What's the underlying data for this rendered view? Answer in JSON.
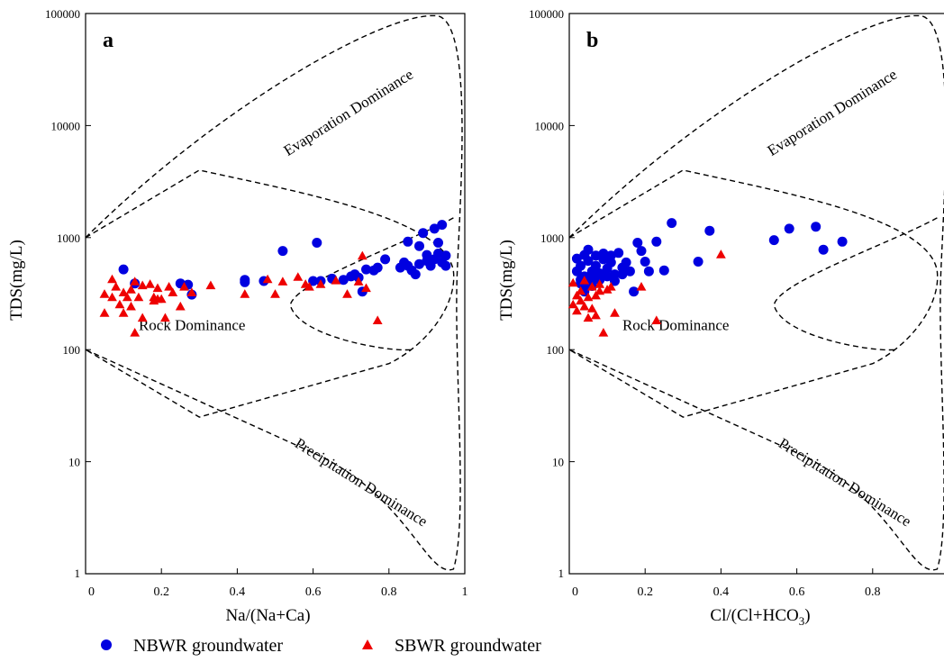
{
  "colors": {
    "nbwr": "#0000e0",
    "sbwr": "#ee0000",
    "axis": "#000000",
    "envelope": "#000000"
  },
  "legend": {
    "position": "bottom",
    "items": [
      {
        "label": "NBWR groundwater",
        "marker": "circle",
        "color": "#0000e0"
      },
      {
        "label": "SBWR groundwater",
        "marker": "triangle",
        "color": "#ee0000"
      }
    ]
  },
  "chart_data": [
    {
      "type": "scatter",
      "panel_label": "a",
      "title": "",
      "xlabel": "Na/(Na+Ca)",
      "ylabel": "TDS(mg/L)",
      "xlim": [
        0,
        1
      ],
      "ylim": [
        1,
        100000
      ],
      "y_scale": "log",
      "grid": false,
      "x_ticks": [
        "0",
        "0.2",
        "0.4",
        "0.6",
        "0.8",
        "1"
      ],
      "y_ticks": [
        "1",
        "10",
        "100",
        "1000",
        "10000",
        "100000"
      ],
      "zone_labels": [
        "Evaporation Dominance",
        "Rock Dominance",
        "Precipitation Dominance"
      ],
      "series": [
        {
          "name": "NBWR groundwater",
          "marker": "circle",
          "points": [
            [
              0.1,
              520
            ],
            [
              0.13,
              390
            ],
            [
              0.25,
              390
            ],
            [
              0.27,
              380
            ],
            [
              0.28,
              310
            ],
            [
              0.42,
              420
            ],
            [
              0.42,
              400
            ],
            [
              0.47,
              410
            ],
            [
              0.52,
              760
            ],
            [
              0.6,
              410
            ],
            [
              0.61,
              900
            ],
            [
              0.62,
              410
            ],
            [
              0.65,
              430
            ],
            [
              0.68,
              420
            ],
            [
              0.7,
              450
            ],
            [
              0.71,
              470
            ],
            [
              0.72,
              440
            ],
            [
              0.73,
              330
            ],
            [
              0.74,
              520
            ],
            [
              0.76,
              510
            ],
            [
              0.77,
              540
            ],
            [
              0.79,
              640
            ],
            [
              0.83,
              540
            ],
            [
              0.84,
              600
            ],
            [
              0.85,
              920
            ],
            [
              0.85,
              560
            ],
            [
              0.86,
              510
            ],
            [
              0.87,
              470
            ],
            [
              0.88,
              840
            ],
            [
              0.88,
              580
            ],
            [
              0.89,
              1100
            ],
            [
              0.9,
              700
            ],
            [
              0.9,
              620
            ],
            [
              0.91,
              560
            ],
            [
              0.92,
              640
            ],
            [
              0.92,
              1200
            ],
            [
              0.93,
              720
            ],
            [
              0.93,
              900
            ],
            [
              0.94,
              1300
            ],
            [
              0.94,
              600
            ],
            [
              0.95,
              690
            ],
            [
              0.95,
              560
            ]
          ]
        },
        {
          "name": "SBWR groundwater",
          "marker": "triangle",
          "points": [
            [
              0.05,
              310
            ],
            [
              0.05,
              210
            ],
            [
              0.07,
              420
            ],
            [
              0.07,
              290
            ],
            [
              0.08,
              360
            ],
            [
              0.09,
              250
            ],
            [
              0.1,
              320
            ],
            [
              0.1,
              210
            ],
            [
              0.11,
              290
            ],
            [
              0.12,
              340
            ],
            [
              0.12,
              240
            ],
            [
              0.13,
              140
            ],
            [
              0.13,
              400
            ],
            [
              0.14,
              290
            ],
            [
              0.15,
              370
            ],
            [
              0.15,
              190
            ],
            [
              0.17,
              380
            ],
            [
              0.18,
              290
            ],
            [
              0.18,
              270
            ],
            [
              0.19,
              350
            ],
            [
              0.19,
              280
            ],
            [
              0.2,
              280
            ],
            [
              0.21,
              190
            ],
            [
              0.22,
              360
            ],
            [
              0.23,
              320
            ],
            [
              0.25,
              240
            ],
            [
              0.26,
              360
            ],
            [
              0.28,
              320
            ],
            [
              0.33,
              370
            ],
            [
              0.42,
              310
            ],
            [
              0.48,
              420
            ],
            [
              0.5,
              310
            ],
            [
              0.52,
              400
            ],
            [
              0.56,
              440
            ],
            [
              0.58,
              380
            ],
            [
              0.59,
              360
            ],
            [
              0.62,
              380
            ],
            [
              0.66,
              410
            ],
            [
              0.69,
              310
            ],
            [
              0.72,
              400
            ],
            [
              0.73,
              680
            ],
            [
              0.74,
              350
            ],
            [
              0.77,
              180
            ]
          ]
        }
      ]
    },
    {
      "type": "scatter",
      "panel_label": "b",
      "title": "",
      "xlabel": "Cl/(Cl+HCO3)",
      "ylabel": "TDS(mg/L)",
      "xlim": [
        0,
        1
      ],
      "ylim": [
        1,
        100000
      ],
      "y_scale": "log",
      "grid": false,
      "x_ticks": [
        "0",
        "0.2",
        "0.4",
        "0.6",
        "0.8"
      ],
      "y_ticks": [
        "1",
        "10",
        "100",
        "1000",
        "10000",
        "100000"
      ],
      "zone_labels": [
        "Evaporation Dominance",
        "Rock Dominance",
        "Precipitation Dominance"
      ],
      "series": [
        {
          "name": "NBWR groundwater",
          "marker": "circle",
          "points": [
            [
              0.02,
              650
            ],
            [
              0.02,
              500
            ],
            [
              0.03,
              420
            ],
            [
              0.03,
              560
            ],
            [
              0.04,
              700
            ],
            [
              0.04,
              450
            ],
            [
              0.05,
              780
            ],
            [
              0.05,
              380
            ],
            [
              0.05,
              620
            ],
            [
              0.06,
              500
            ],
            [
              0.06,
              430
            ],
            [
              0.07,
              690
            ],
            [
              0.07,
              560
            ],
            [
              0.08,
              480
            ],
            [
              0.08,
              420
            ],
            [
              0.09,
              640
            ],
            [
              0.09,
              720
            ],
            [
              0.1,
              530
            ],
            [
              0.1,
              450
            ],
            [
              0.11,
              600
            ],
            [
              0.11,
              690
            ],
            [
              0.12,
              470
            ],
            [
              0.12,
              410
            ],
            [
              0.13,
              730
            ],
            [
              0.14,
              540
            ],
            [
              0.14,
              470
            ],
            [
              0.15,
              600
            ],
            [
              0.16,
              500
            ],
            [
              0.17,
              330
            ],
            [
              0.18,
              900
            ],
            [
              0.19,
              760
            ],
            [
              0.2,
              610
            ],
            [
              0.21,
              500
            ],
            [
              0.23,
              920
            ],
            [
              0.25,
              510
            ],
            [
              0.27,
              1350
            ],
            [
              0.34,
              610
            ],
            [
              0.37,
              1150
            ],
            [
              0.54,
              950
            ],
            [
              0.58,
              1200
            ],
            [
              0.65,
              1250
            ],
            [
              0.67,
              780
            ],
            [
              0.72,
              920
            ],
            [
              0.04,
              330
            ],
            [
              0.03,
              390
            ],
            [
              0.06,
              370
            ]
          ]
        },
        {
          "name": "SBWR groundwater",
          "marker": "triangle",
          "points": [
            [
              0.01,
              250
            ],
            [
              0.01,
              390
            ],
            [
              0.02,
              300
            ],
            [
              0.02,
              220
            ],
            [
              0.03,
              330
            ],
            [
              0.03,
              270
            ],
            [
              0.04,
              410
            ],
            [
              0.04,
              240
            ],
            [
              0.05,
              290
            ],
            [
              0.05,
              190
            ],
            [
              0.06,
              360
            ],
            [
              0.06,
              230
            ],
            [
              0.07,
              300
            ],
            [
              0.07,
              200
            ],
            [
              0.08,
              380
            ],
            [
              0.08,
              330
            ],
            [
              0.09,
              140
            ],
            [
              0.1,
              340
            ],
            [
              0.11,
              360
            ],
            [
              0.12,
              210
            ],
            [
              0.19,
              360
            ],
            [
              0.23,
              180
            ],
            [
              0.4,
              700
            ]
          ]
        }
      ]
    }
  ]
}
